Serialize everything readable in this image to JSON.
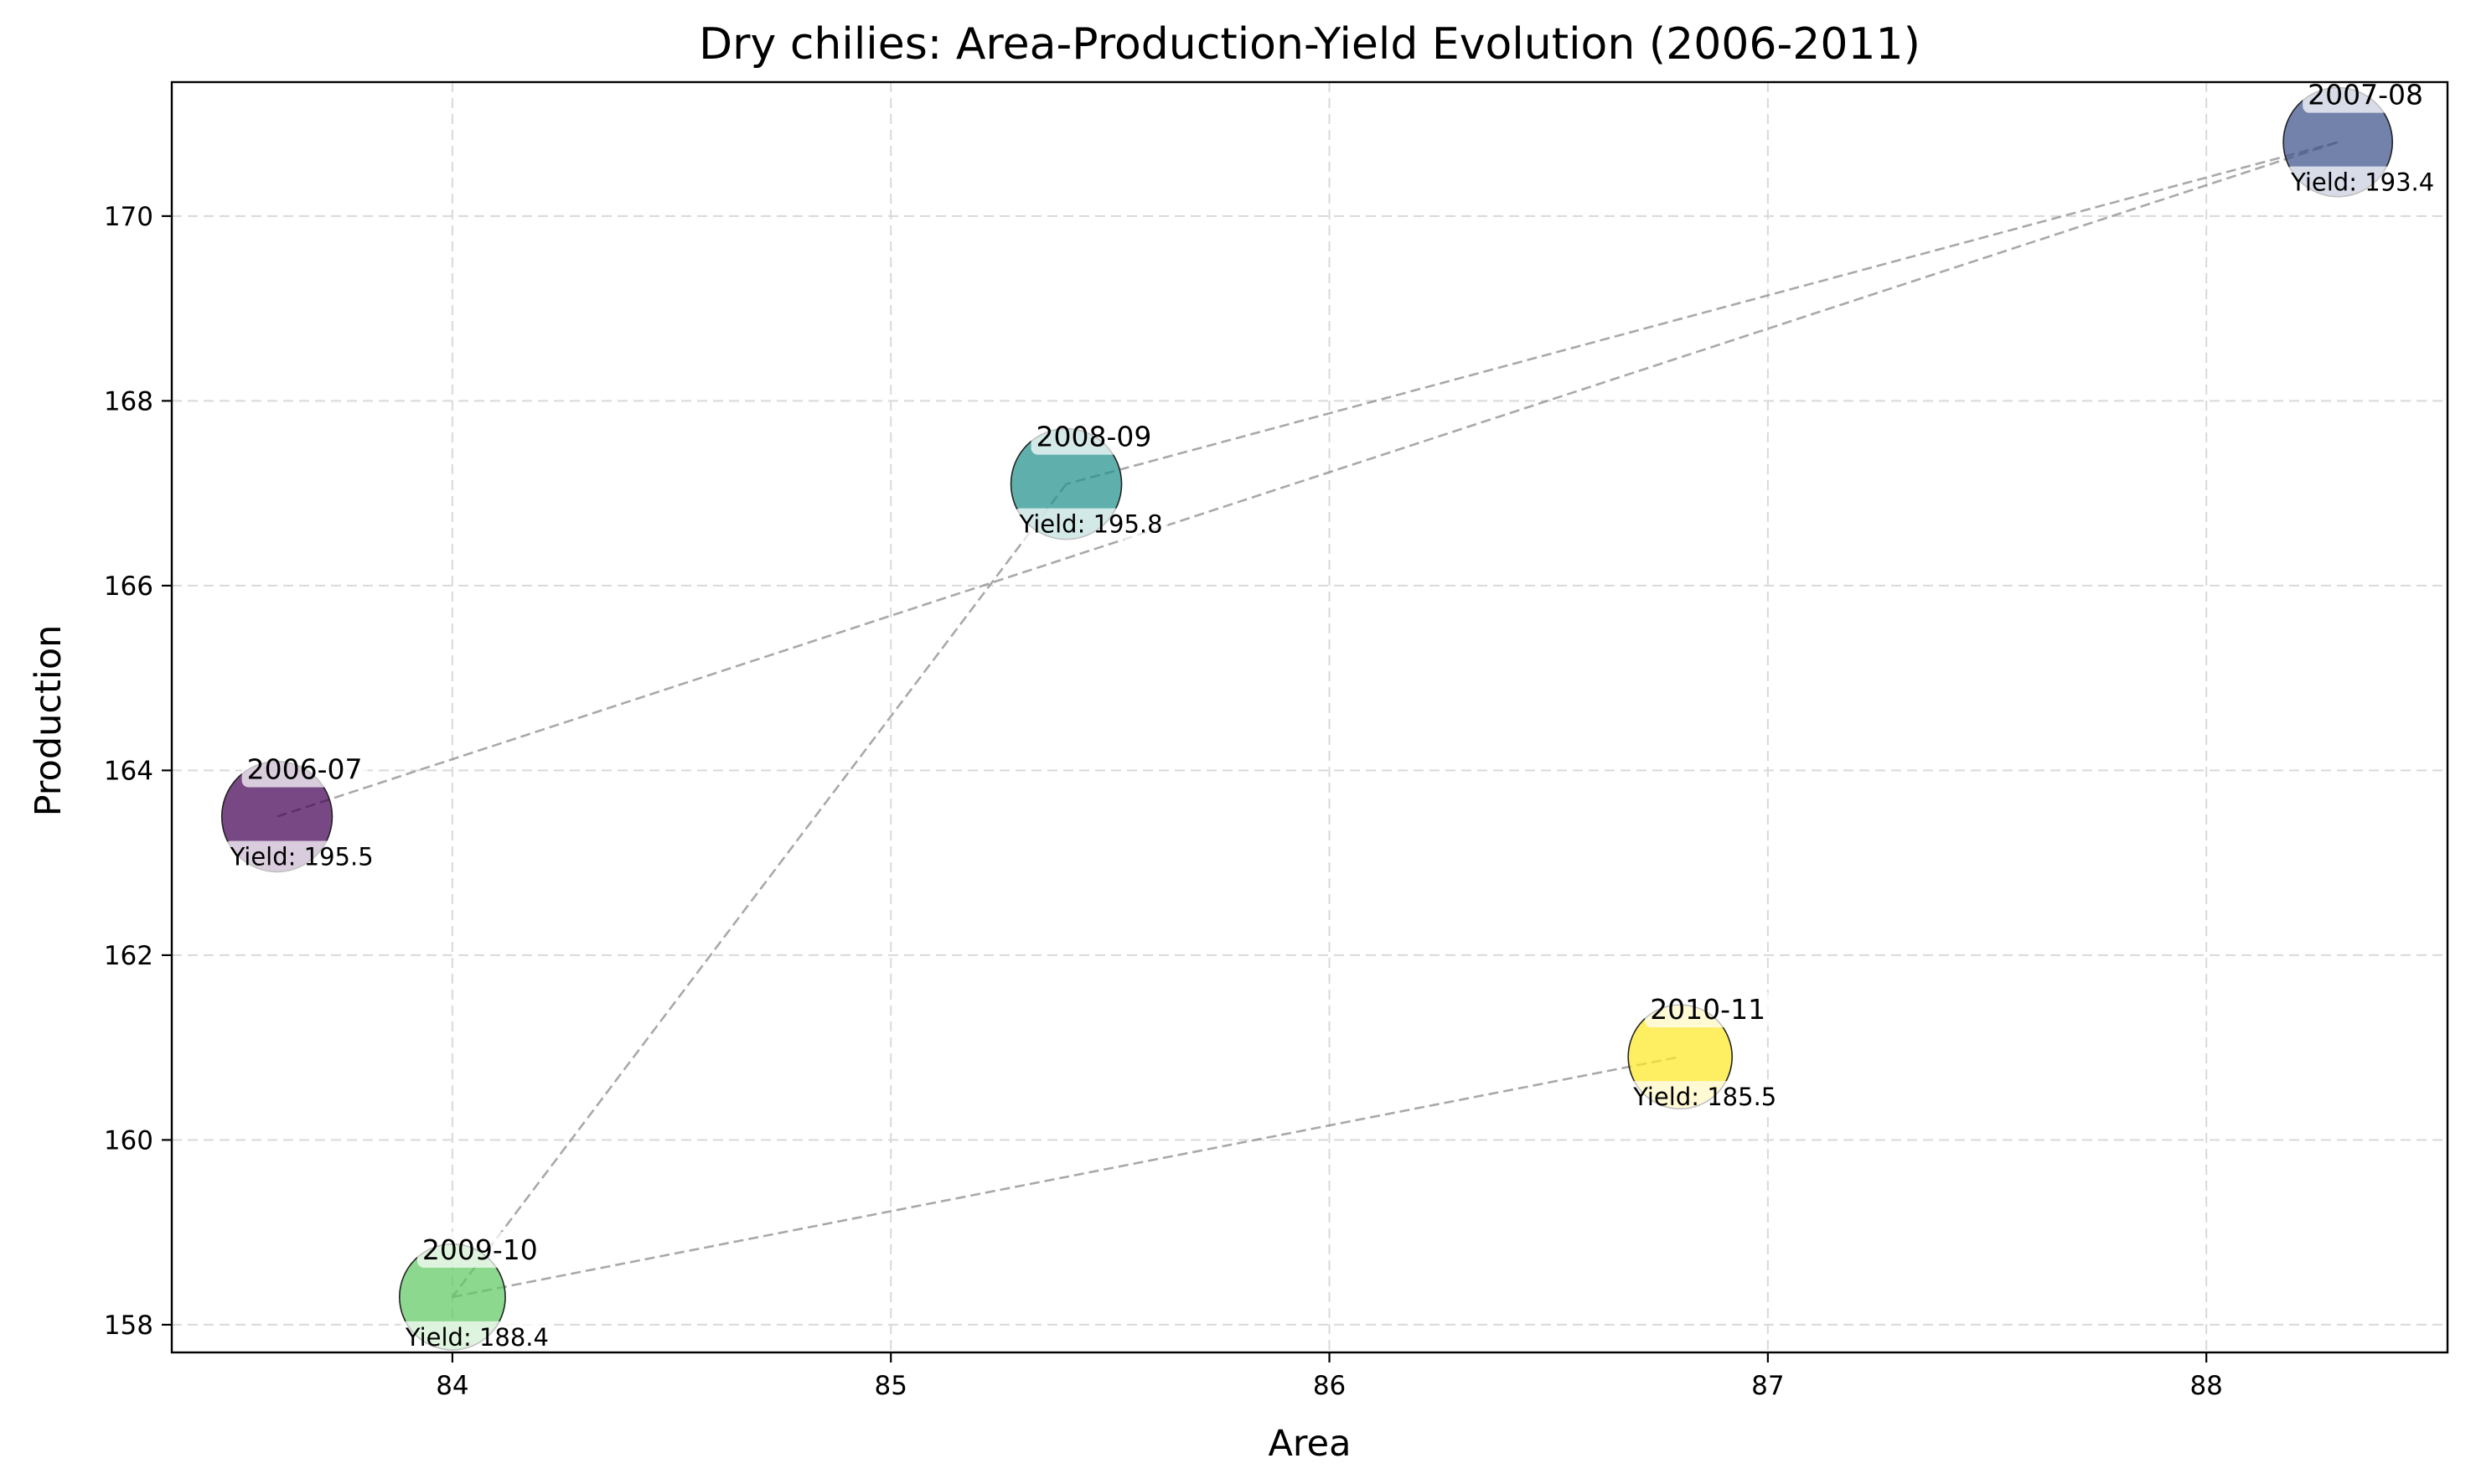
{
  "chart_data": {
    "type": "scatter",
    "title": "Dry chilies: Area-Production-Yield Evolution (2006-2011)",
    "xlabel": "Area",
    "ylabel": "Production",
    "xlim": [
      83.36,
      88.55
    ],
    "ylim": [
      157.7,
      171.45
    ],
    "xticks": [
      84,
      85,
      86,
      87,
      88
    ],
    "yticks": [
      158,
      160,
      162,
      164,
      166,
      168,
      170
    ],
    "grid": true,
    "points": [
      {
        "label": "2006-07",
        "area": 83.6,
        "production": 163.5,
        "yield_text": "Yield: 195.5",
        "yield": 195.5,
        "color": "#440154"
      },
      {
        "label": "2007-08",
        "area": 88.3,
        "production": 170.8,
        "yield_text": "Yield: 193.4",
        "yield": 193.4,
        "color": "#3b528b"
      },
      {
        "label": "2008-09",
        "area": 85.4,
        "production": 167.1,
        "yield_text": "Yield: 195.8",
        "yield": 195.8,
        "color": "#21918c"
      },
      {
        "label": "2009-10",
        "area": 84.0,
        "production": 158.3,
        "yield_text": "Yield: 188.4",
        "yield": 188.4,
        "color": "#5ec962"
      },
      {
        "label": "2010-11",
        "area": 86.8,
        "production": 160.9,
        "yield_text": "Yield: 185.5",
        "yield": 185.5,
        "color": "#fde725"
      }
    ]
  }
}
